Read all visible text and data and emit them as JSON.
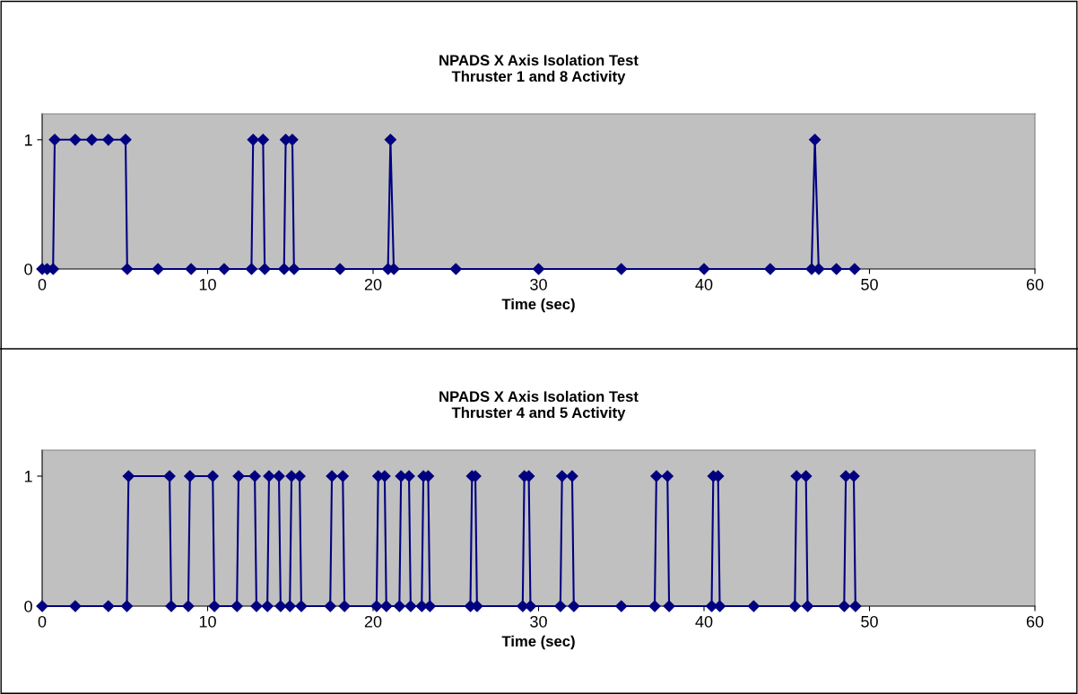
{
  "chart_data": [
    {
      "type": "line",
      "title": "NPADS X Axis Isolation Test\nThruster 1 and 8 Activity",
      "xlabel": "Time (sec)",
      "xlim": [
        0,
        60
      ],
      "xticks": [
        0,
        10,
        20,
        30,
        40,
        50,
        60
      ],
      "ylim": [
        0,
        1.2
      ],
      "yticks": [
        0,
        1
      ],
      "marker": "diamond",
      "line_style": "solid",
      "series": [
        {
          "color": "#000080",
          "x": [
            0,
            0.3,
            0.66,
            0.76,
            2,
            3,
            4,
            5.04,
            5.14,
            7,
            9,
            11,
            12.65,
            12.75,
            13.35,
            13.45,
            14.62,
            14.72,
            15.12,
            15.22,
            18,
            20.9,
            21.05,
            21.25,
            25,
            30,
            35,
            40,
            44,
            46.5,
            46.7,
            46.93,
            48,
            49.1
          ],
          "values": [
            0,
            0,
            0,
            1,
            1,
            1,
            1,
            1,
            0,
            0,
            0,
            0,
            0,
            1,
            1,
            0,
            0,
            1,
            1,
            0,
            0,
            0,
            1,
            0,
            0,
            0,
            0,
            0,
            0,
            0,
            1,
            0,
            0,
            0
          ]
        }
      ]
    },
    {
      "type": "line",
      "title": "NPADS X Axis Isolation Test\nThruster 4 and 5 Activity",
      "xlabel": "Time (sec)",
      "xlim": [
        0,
        60
      ],
      "xticks": [
        0,
        10,
        20,
        30,
        40,
        50,
        60
      ],
      "ylim": [
        0,
        1.2
      ],
      "yticks": [
        0,
        1
      ],
      "marker": "diamond",
      "line_style": "solid",
      "series": [
        {
          "color": "#000080",
          "x": [
            0,
            2,
            4,
            5.12,
            5.22,
            7.7,
            7.8,
            8.83,
            8.93,
            10.31,
            10.41,
            11.77,
            11.87,
            12.85,
            12.95,
            13.61,
            13.71,
            14.31,
            14.41,
            14.97,
            15.07,
            15.56,
            15.66,
            17.41,
            17.51,
            18.17,
            18.27,
            20.21,
            20.31,
            20.7,
            20.8,
            21.59,
            21.69,
            22.17,
            22.27,
            22.94,
            23.04,
            23.33,
            23.43,
            25.88,
            25.98,
            26.18,
            26.28,
            29.04,
            29.14,
            29.41,
            29.51,
            31.32,
            31.42,
            32.03,
            32.13,
            35,
            37.02,
            37.12,
            37.79,
            37.89,
            40.46,
            40.56,
            40.85,
            40.95,
            43,
            45.49,
            45.59,
            46.16,
            46.26,
            48.47,
            48.57,
            49.05,
            49.15
          ],
          "values": [
            0,
            0,
            0,
            0,
            1,
            1,
            0,
            0,
            1,
            1,
            0,
            0,
            1,
            1,
            0,
            0,
            1,
            1,
            0,
            0,
            1,
            1,
            0,
            0,
            1,
            1,
            0,
            0,
            1,
            1,
            0,
            0,
            1,
            1,
            0,
            0,
            1,
            1,
            0,
            0,
            1,
            1,
            0,
            0,
            1,
            1,
            0,
            0,
            1,
            1,
            0,
            0,
            0,
            1,
            1,
            0,
            0,
            1,
            1,
            0,
            0,
            0,
            1,
            1,
            0,
            0,
            1,
            1,
            0
          ]
        }
      ]
    }
  ]
}
